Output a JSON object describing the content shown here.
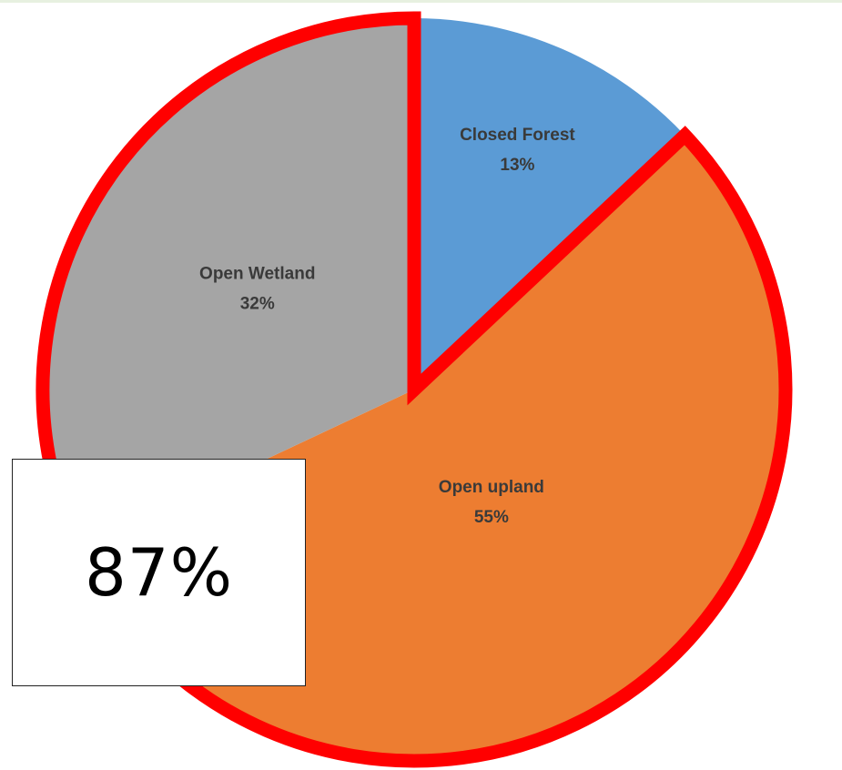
{
  "chart_data": {
    "type": "pie",
    "title": "",
    "slices": [
      {
        "name": "Closed Forest",
        "label": "Closed Forest",
        "percent_label": "13%",
        "value": 13,
        "color": "#5b9bd5"
      },
      {
        "name": "Open upland",
        "label": "Open upland",
        "percent_label": "55%",
        "value": 55,
        "color": "#ed7d31"
      },
      {
        "name": "Open Wetland",
        "label": "Open Wetland",
        "percent_label": "32%",
        "value": 32,
        "color": "#a5a5a5"
      }
    ],
    "start_angle_deg_clockwise_from_top": 0,
    "highlight": {
      "slices": [
        "Open upland",
        "Open Wetland"
      ],
      "outline_color": "#ff0000"
    }
  },
  "callout": {
    "text": "87%"
  }
}
